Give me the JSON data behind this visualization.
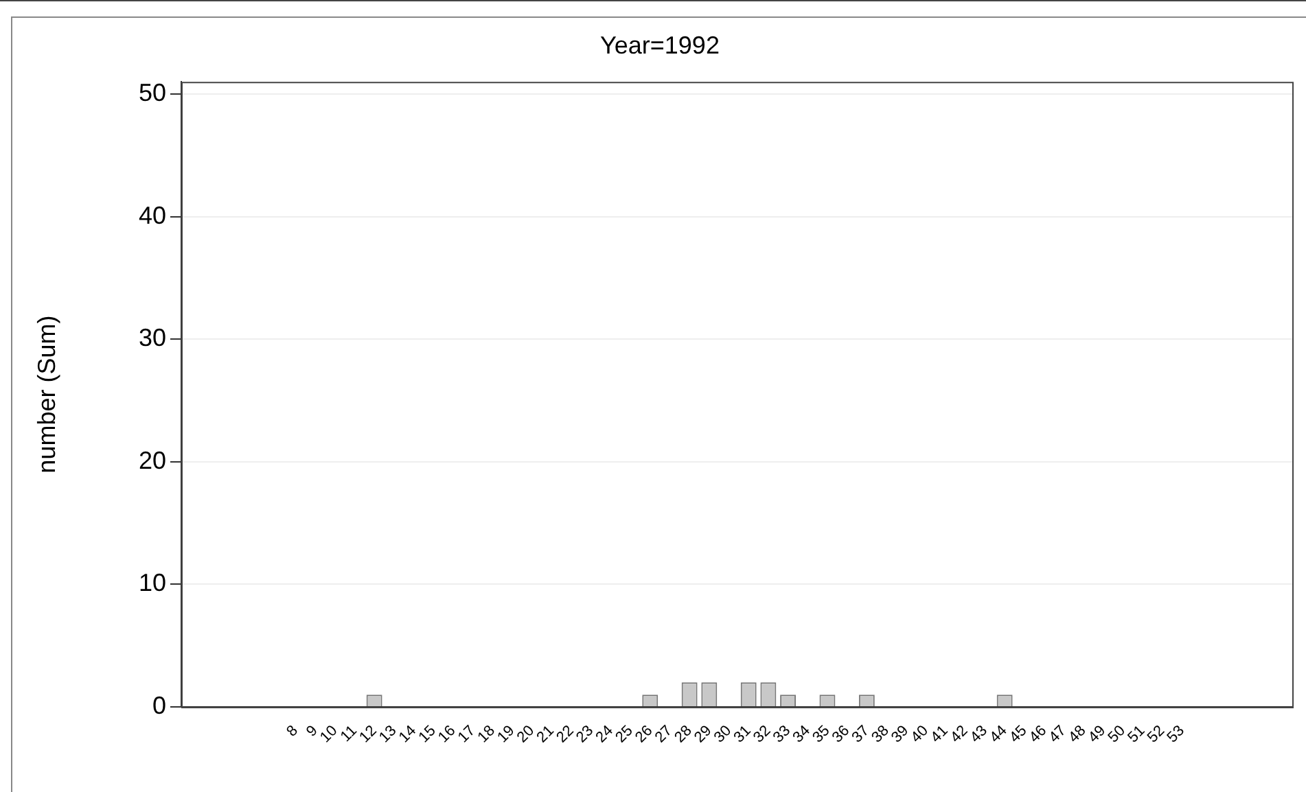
{
  "chart_data": {
    "type": "bar",
    "title": "Year=1992",
    "ylabel": "number (Sum)",
    "categories": [
      "8",
      "9",
      "10",
      "11",
      "12",
      "13",
      "14",
      "15",
      "16",
      "17",
      "18",
      "19",
      "20",
      "21",
      "22",
      "23",
      "24",
      "25",
      "26",
      "27",
      "28",
      "29",
      "30",
      "31",
      "32",
      "33",
      "34",
      "35",
      "36",
      "37",
      "38",
      "39",
      "40",
      "41",
      "42",
      "43",
      "44",
      "45",
      "46",
      "47",
      "48",
      "49",
      "50",
      "51",
      "52",
      "53"
    ],
    "values": [
      0,
      0,
      0,
      0,
      1,
      0,
      0,
      0,
      0,
      0,
      0,
      0,
      0,
      0,
      0,
      0,
      0,
      0,
      1,
      0,
      2,
      2,
      0,
      2,
      2,
      1,
      0,
      1,
      0,
      1,
      0,
      0,
      0,
      0,
      0,
      0,
      1,
      0,
      0,
      0,
      0,
      0,
      0,
      0,
      0,
      0
    ],
    "color": "#c8c8c8",
    "ylim": [
      0,
      51
    ],
    "yticks": [
      0,
      10,
      20,
      30,
      40,
      50
    ],
    "grid": "y"
  }
}
